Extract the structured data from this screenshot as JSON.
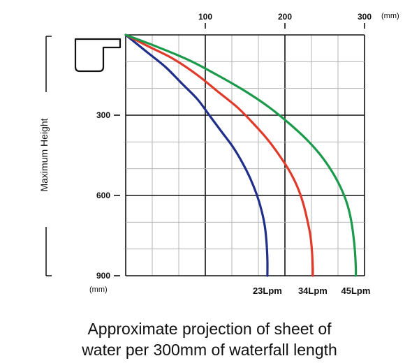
{
  "chart_data": {
    "type": "line",
    "xlabel": "",
    "x_unit": "(mm)",
    "ylabel": "Maximum Height",
    "y_unit": "(mm)",
    "xlim": [
      0,
      300
    ],
    "ylim": [
      0,
      900
    ],
    "y_inverted": true,
    "x_axis_position": "top",
    "grid": true,
    "x_ticks": [
      100,
      200,
      300
    ],
    "y_ticks": [
      300,
      600,
      900
    ],
    "series": [
      {
        "name": "23Lpm",
        "color": "#1f2f8a",
        "points": [
          [
            0,
            0
          ],
          [
            25,
            60
          ],
          [
            50,
            120
          ],
          [
            70,
            180
          ],
          [
            90,
            240
          ],
          [
            105,
            300
          ],
          [
            120,
            360
          ],
          [
            135,
            420
          ],
          [
            147,
            480
          ],
          [
            157,
            540
          ],
          [
            165,
            600
          ],
          [
            171,
            660
          ],
          [
            175,
            720
          ],
          [
            177,
            780
          ],
          [
            178,
            840
          ],
          [
            178,
            900
          ]
        ]
      },
      {
        "name": "34Lpm",
        "color": "#e03a2a",
        "points": [
          [
            0,
            0
          ],
          [
            30,
            45
          ],
          [
            60,
            90
          ],
          [
            90,
            150
          ],
          [
            115,
            210
          ],
          [
            140,
            270
          ],
          [
            160,
            330
          ],
          [
            178,
            390
          ],
          [
            193,
            450
          ],
          [
            206,
            510
          ],
          [
            216,
            570
          ],
          [
            223,
            630
          ],
          [
            228,
            690
          ],
          [
            232,
            750
          ],
          [
            234,
            810
          ],
          [
            235,
            870
          ],
          [
            235,
            900
          ]
        ]
      },
      {
        "name": "45Lpm",
        "color": "#1a9a4a",
        "points": [
          [
            0,
            0
          ],
          [
            40,
            45
          ],
          [
            80,
            95
          ],
          [
            115,
            150
          ],
          [
            150,
            210
          ],
          [
            180,
            270
          ],
          [
            205,
            330
          ],
          [
            227,
            390
          ],
          [
            245,
            450
          ],
          [
            259,
            510
          ],
          [
            270,
            570
          ],
          [
            278,
            630
          ],
          [
            283,
            690
          ],
          [
            286,
            750
          ],
          [
            288,
            810
          ],
          [
            289,
            870
          ],
          [
            289,
            900
          ]
        ]
      }
    ]
  },
  "caption": {
    "line1": "Approximate projection of sheet of",
    "line2": "water per 300mm of waterfall length"
  }
}
